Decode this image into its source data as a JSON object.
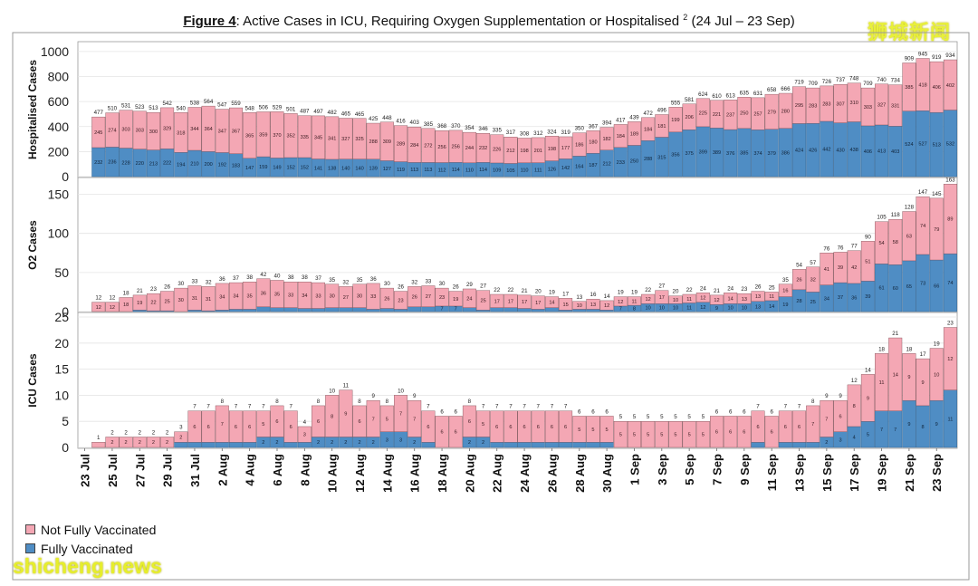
{
  "title": {
    "figure": "Figure 4",
    "text": ": Active Cases in ICU, Requiring Oxygen Supplementation or Hospitalised",
    "superscript": "2",
    "range": " (24 Jul – 23 Sep)"
  },
  "watermarks": {
    "top": "狮城新闻",
    "bottom": "shicheng.news"
  },
  "colors": {
    "not_fully_vaccinated": "#f4a7b4",
    "fully_vaccinated": "#4f8dc4",
    "panel_bg": "#ffffff",
    "border": "#888888"
  },
  "legend": [
    {
      "label": "Not Fully Vaccinated",
      "color": "#f4a7b4"
    },
    {
      "label": "Fully Vaccinated",
      "color": "#4f8dc4"
    }
  ],
  "chart_data": {
    "type": "bar",
    "stacked": true,
    "x_tick_labels": [
      "23 Jul",
      "25 Jul",
      "27 Jul",
      "29 Jul",
      "31 Jul",
      "2 Aug",
      "4 Aug",
      "6 Aug",
      "8 Aug",
      "10 Aug",
      "12 Aug",
      "14 Aug",
      "16 Aug",
      "18 Aug",
      "20 Aug",
      "22 Aug",
      "24 Aug",
      "26 Aug",
      "28 Aug",
      "30 Aug",
      "1 Sep",
      "3 Sep",
      "5 Sep",
      "7 Sep",
      "9 Sep",
      "11 Sep",
      "13 Sep",
      "15 Sep",
      "17 Sep",
      "19 Sep",
      "21 Sep",
      "23 Sep"
    ],
    "panels": [
      {
        "ylabel": "Hospitalised Cases",
        "ylim": [
          0,
          1050
        ],
        "yticks": [
          0,
          200,
          400,
          600,
          800,
          1000
        ],
        "start_index": 1,
        "totals": [
          477,
          510,
          531,
          523,
          513,
          542,
          540,
          538,
          564,
          547,
          559,
          548,
          506,
          529,
          501,
          487,
          497,
          482,
          465,
          465,
          425,
          448,
          416,
          403,
          385,
          368,
          370,
          354,
          346,
          335,
          317,
          308,
          312,
          324,
          319,
          350,
          367,
          394,
          417,
          439,
          472,
          496,
          555,
          581,
          624,
          610,
          613,
          635,
          631,
          658,
          666,
          719,
          709,
          726,
          737,
          748,
          709,
          740,
          734,
          909,
          945,
          919,
          934
        ],
        "fully": [
          232,
          236,
          228,
          220,
          213,
          222,
          194,
          210,
          200,
          192,
          183,
          147,
          159,
          149,
          152,
          152,
          141,
          138,
          140,
          140,
          139,
          127,
          119,
          113,
          113,
          112,
          114,
          110,
          114,
          109,
          105,
          110,
          111,
          126,
          142,
          164,
          187,
          212,
          233,
          250,
          288,
          315,
          356,
          375,
          399,
          389,
          376,
          385,
          374,
          379,
          386,
          424,
          426,
          442,
          430,
          438,
          406,
          413,
          403,
          524,
          527,
          513,
          532
        ],
        "not_fully": [
          245,
          274,
          303,
          303,
          300,
          329,
          318,
          344,
          364,
          347,
          367,
          365,
          359,
          370,
          352,
          335,
          345,
          341,
          327,
          325,
          288,
          309,
          289,
          284,
          272,
          256,
          256,
          244,
          232,
          226,
          212,
          198,
          201,
          198,
          177,
          186,
          180,
          182,
          184,
          189,
          184,
          181,
          199,
          206,
          225,
          221,
          237,
          250,
          257,
          279,
          280,
          295,
          283,
          283,
          307,
          310,
          303,
          327,
          331,
          385,
          418,
          406,
          402
        ]
      },
      {
        "ylabel": "O2 Cases",
        "ylim": [
          0,
          168
        ],
        "yticks": [
          0,
          50,
          100,
          150
        ],
        "start_index": 1,
        "totals": [
          12,
          12,
          18,
          21,
          23,
          26,
          30,
          33,
          32,
          36,
          37,
          38,
          42,
          40,
          38,
          38,
          37,
          35,
          32,
          35,
          36,
          30,
          26,
          32,
          33,
          30,
          26,
          29,
          27,
          22,
          22,
          21,
          20,
          19,
          17,
          13,
          16,
          14,
          19,
          19,
          22,
          27,
          20,
          22,
          24,
          21,
          24,
          23,
          26,
          25,
          35,
          54,
          57,
          76,
          76,
          77,
          90,
          105,
          118,
          128,
          147,
          145,
          163
        ],
        "fully": [
          0,
          0,
          0,
          2,
          1,
          1,
          0,
          2,
          1,
          2,
          3,
          3,
          6,
          5,
          5,
          4,
          4,
          5,
          5,
          5,
          3,
          4,
          3,
          6,
          6,
          7,
          7,
          5,
          2,
          5,
          5,
          4,
          3,
          5,
          2,
          3,
          3,
          2,
          7,
          8,
          10,
          10,
          10,
          11,
          12,
          9,
          10,
          10,
          13,
          14,
          19,
          28,
          25,
          34,
          37,
          36,
          39,
          61,
          60,
          65,
          73,
          66,
          74
        ],
        "not_fully": [
          12,
          12,
          18,
          19,
          22,
          25,
          30,
          31,
          31,
          34,
          34,
          35,
          36,
          35,
          33,
          34,
          33,
          30,
          27,
          30,
          33,
          26,
          23,
          26,
          27,
          23,
          19,
          24,
          25,
          17,
          17,
          17,
          17,
          14,
          15,
          10,
          13,
          12,
          12,
          11,
          12,
          17,
          10,
          11,
          12,
          12,
          14,
          13,
          13,
          11,
          16,
          26,
          32,
          41,
          39,
          42,
          51,
          54,
          58,
          63,
          74,
          79,
          89
        ]
      },
      {
        "ylabel": "ICU Cases",
        "ylim": [
          0,
          25
        ],
        "yticks": [
          0,
          5,
          10,
          15,
          20,
          25
        ],
        "start_index": 1,
        "totals": [
          1,
          2,
          2,
          2,
          2,
          2,
          3,
          7,
          7,
          8,
          7,
          7,
          7,
          8,
          7,
          4,
          8,
          10,
          11,
          8,
          9,
          8,
          10,
          9,
          7,
          6,
          6,
          8,
          7,
          7,
          7,
          7,
          7,
          7,
          7,
          6,
          6,
          6,
          5,
          5,
          5,
          5,
          5,
          5,
          5,
          6,
          6,
          6,
          7,
          6,
          7,
          7,
          8,
          9,
          9,
          12,
          14,
          18,
          21,
          18,
          17,
          19,
          23
        ],
        "fully": [
          0,
          0,
          0,
          0,
          0,
          0,
          1,
          1,
          1,
          1,
          1,
          1,
          2,
          2,
          1,
          1,
          2,
          2,
          2,
          2,
          2,
          3,
          3,
          2,
          1,
          0,
          0,
          2,
          2,
          1,
          1,
          1,
          1,
          1,
          1,
          1,
          1,
          1,
          0,
          0,
          0,
          0,
          0,
          0,
          0,
          0,
          0,
          0,
          1,
          0,
          1,
          1,
          1,
          2,
          3,
          4,
          5,
          7,
          7,
          9,
          8,
          9,
          11
        ],
        "not_fully": [
          1,
          2,
          2,
          2,
          2,
          2,
          2,
          6,
          6,
          7,
          6,
          6,
          5,
          6,
          6,
          3,
          6,
          8,
          9,
          6,
          7,
          5,
          7,
          7,
          6,
          6,
          6,
          6,
          5,
          6,
          6,
          6,
          6,
          6,
          6,
          5,
          5,
          5,
          5,
          5,
          5,
          5,
          5,
          5,
          5,
          6,
          6,
          6,
          6,
          6,
          6,
          6,
          7,
          7,
          6,
          8,
          9,
          11,
          14,
          9,
          9,
          10,
          12
        ]
      }
    ]
  }
}
